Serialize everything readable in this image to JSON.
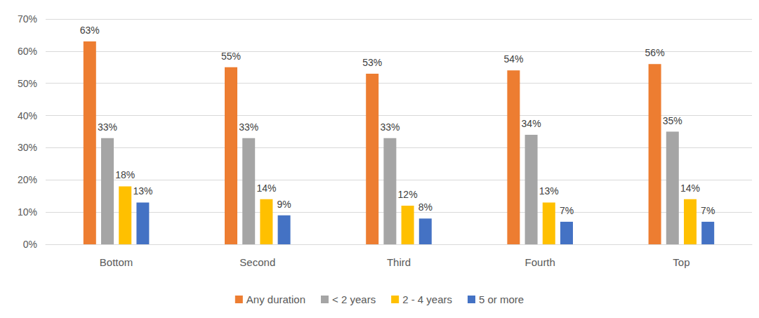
{
  "chart_data": {
    "type": "bar",
    "categories": [
      "Bottom",
      "Second",
      "Third",
      "Fourth",
      "Top"
    ],
    "series": [
      {
        "name": "Any duration",
        "color": "#ED7D31",
        "values": [
          63,
          55,
          53,
          54,
          56
        ],
        "value_labels": [
          "63%",
          "55%",
          "53%",
          "54%",
          "56%"
        ]
      },
      {
        "name": "< 2 years",
        "color": "#A5A5A5",
        "values": [
          33,
          33,
          33,
          34,
          35
        ],
        "value_labels": [
          "33%",
          "33%",
          "33%",
          "34%",
          "35%"
        ]
      },
      {
        "name": "2 - 4 years",
        "color": "#FFC000",
        "values": [
          18,
          14,
          12,
          13,
          14
        ],
        "value_labels": [
          "18%",
          "14%",
          "12%",
          "13%",
          "14%"
        ]
      },
      {
        "name": "5 or more",
        "color": "#4472C4",
        "values": [
          13,
          9,
          8,
          7,
          7
        ],
        "value_labels": [
          "13%",
          "9%",
          "8%",
          "7%",
          "7%"
        ]
      }
    ],
    "ylim": [
      0,
      70
    ],
    "yticks": [
      {
        "value": 0,
        "label": "0%"
      },
      {
        "value": 10,
        "label": "10%"
      },
      {
        "value": 20,
        "label": "20%"
      },
      {
        "value": 30,
        "label": "30%"
      },
      {
        "value": 40,
        "label": "40%"
      },
      {
        "value": 50,
        "label": "50%"
      },
      {
        "value": 60,
        "label": "60%"
      },
      {
        "value": 70,
        "label": "70%"
      }
    ],
    "grid": true,
    "legend": "bottom",
    "data_labels": true
  }
}
